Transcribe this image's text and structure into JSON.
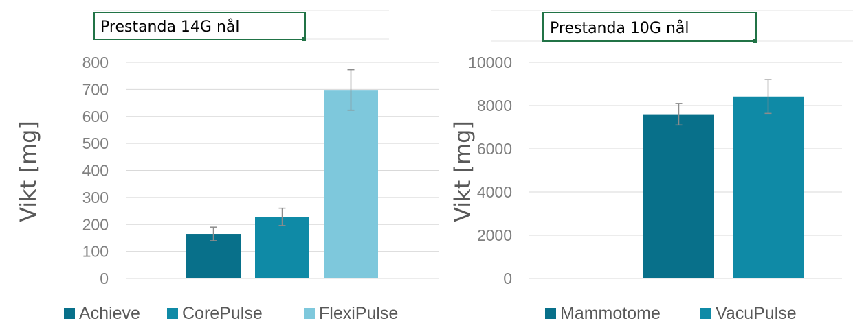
{
  "chart_data": [
    {
      "type": "bar",
      "title": "Prestanda 14G nål",
      "ylabel": "Vikt [mg]",
      "xlabel": "",
      "ylim": [
        0,
        800
      ],
      "yticks": [
        0,
        100,
        200,
        300,
        400,
        500,
        600,
        700,
        800
      ],
      "grid": true,
      "legend_position": "bottom",
      "series": [
        {
          "name": "Achieve",
          "value": 165,
          "error": 25,
          "color": "#08708a"
        },
        {
          "name": "CorePulse",
          "value": 228,
          "error": 32,
          "color": "#0f8aa6"
        },
        {
          "name": "FlexiPulse",
          "value": 698,
          "error": 75,
          "color": "#7ec8dc"
        }
      ]
    },
    {
      "type": "bar",
      "title": "Prestanda 10G nål",
      "ylabel": "Vikt [mg]",
      "xlabel": "",
      "ylim": [
        0,
        10000
      ],
      "yticks": [
        0,
        2000,
        4000,
        6000,
        8000,
        10000
      ],
      "grid": true,
      "legend_position": "bottom",
      "series": [
        {
          "name": "Mammotome",
          "value": 7600,
          "error": 500,
          "color": "#08708a"
        },
        {
          "name": "VacuPulse",
          "value": 8420,
          "error": 780,
          "color": "#0f8aa6"
        }
      ]
    }
  ]
}
